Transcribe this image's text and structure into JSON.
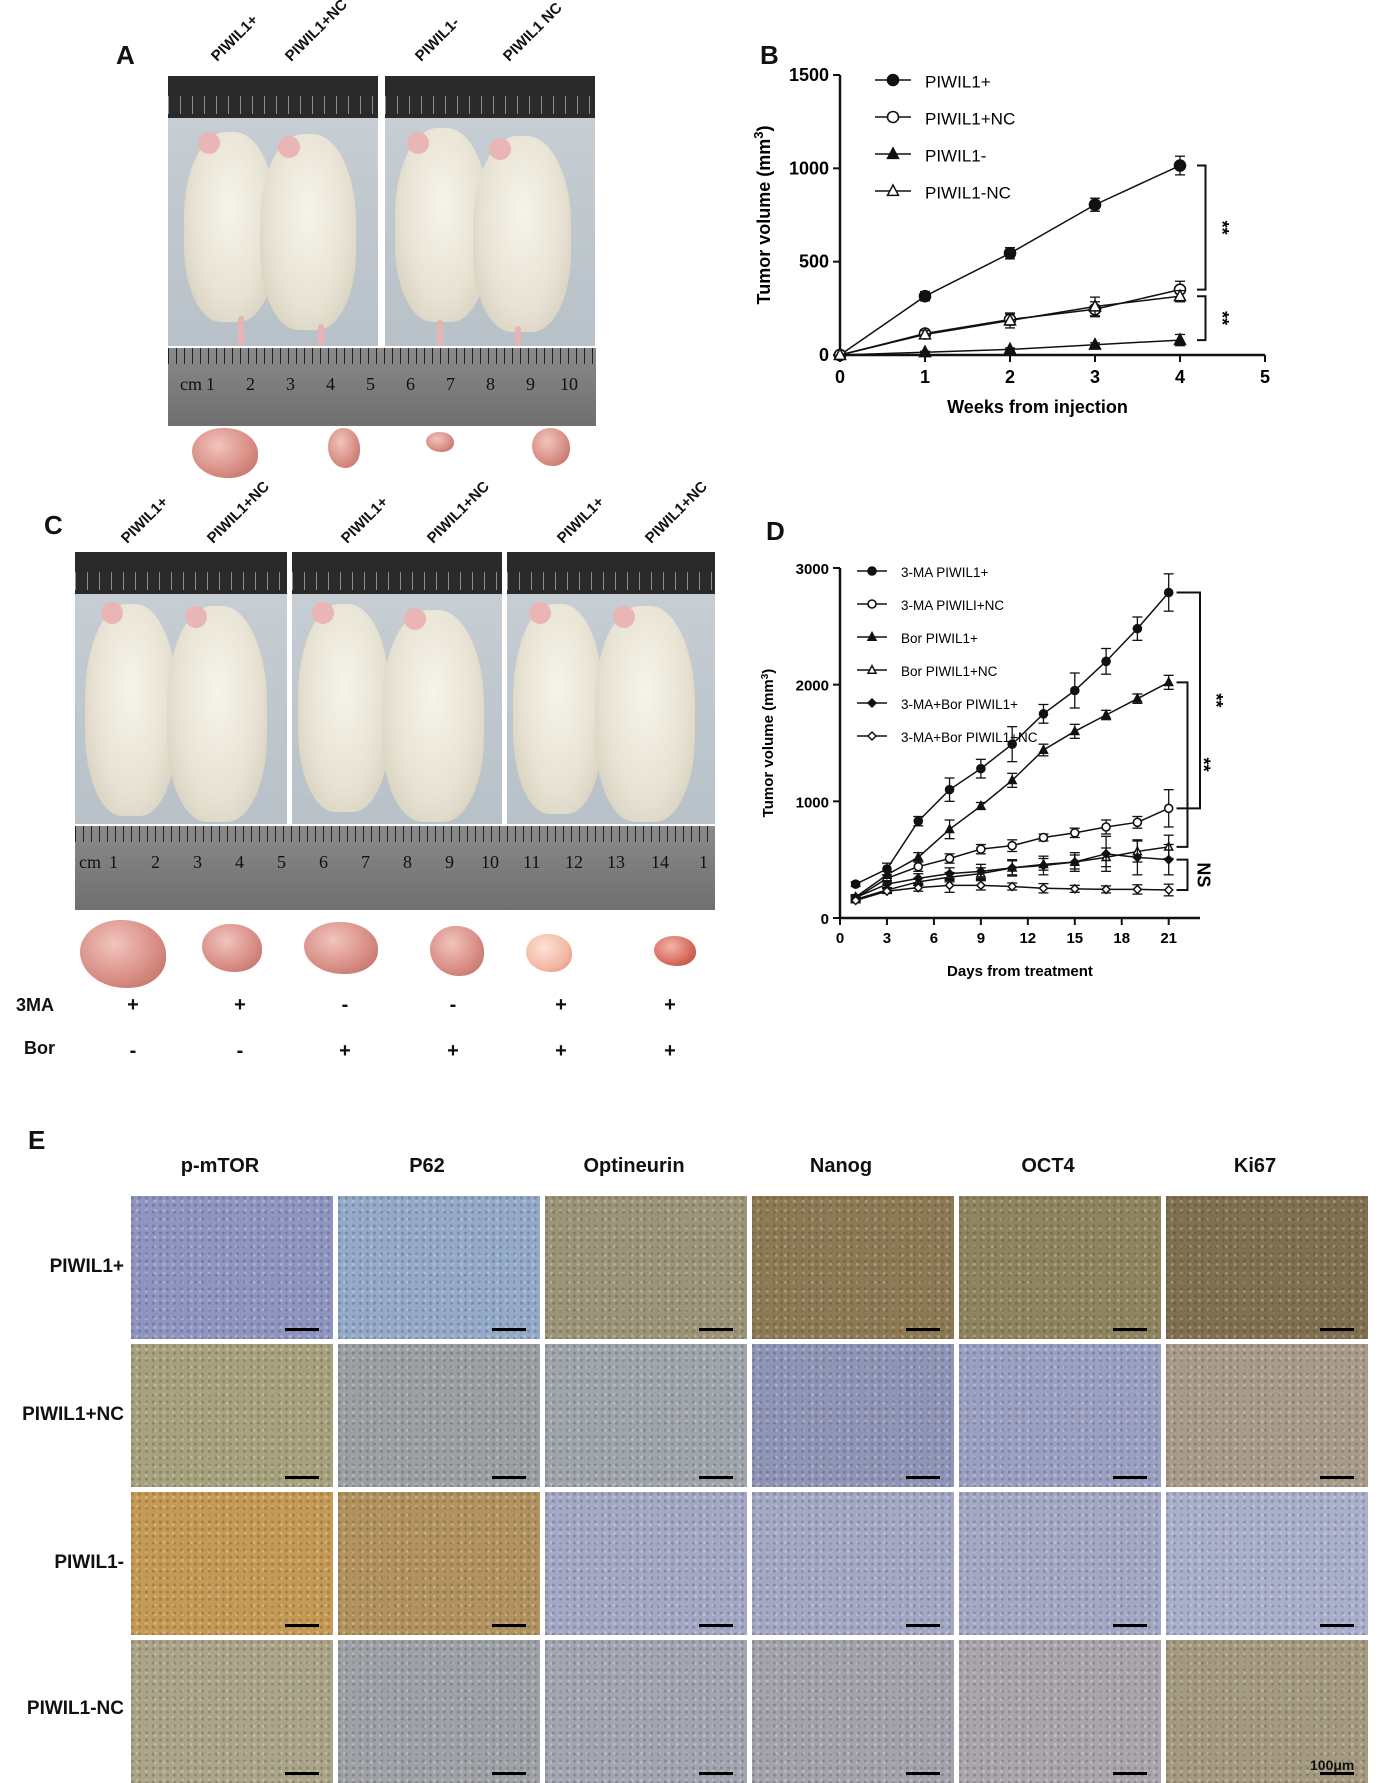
{
  "panels": {
    "a": "A",
    "b": "B",
    "c": "C",
    "d": "D",
    "e": "E"
  },
  "panel_a": {
    "labels": [
      "PIWIL1+",
      "PIWIL1+NC",
      "PIWIL1-",
      "PIWIL1 NC"
    ],
    "ruler_numbers": [
      "1",
      "2",
      "3",
      "4",
      "5",
      "6",
      "7",
      "8",
      "9",
      "10"
    ],
    "ruler_unit": "cm"
  },
  "panel_c": {
    "labels": [
      "PIWIL1+",
      "PIWIL1+NC",
      "PIWIL1+",
      "PIWIL1+NC",
      "PIWIL1+",
      "PIWIL1+NC"
    ],
    "ruler_numbers": [
      "1",
      "2",
      "3",
      "4",
      "5",
      "6",
      "7",
      "8",
      "9",
      "10",
      "11",
      "12",
      "13",
      "14",
      "1"
    ],
    "ruler_unit": "cm",
    "rows": [
      {
        "label": "3MA",
        "signs": [
          "+",
          "+",
          "-",
          "-",
          "+",
          "+"
        ]
      },
      {
        "label": "Bor",
        "signs": [
          "-",
          "-",
          "+",
          "+",
          "+",
          "+"
        ]
      }
    ]
  },
  "panel_e": {
    "columns": [
      "p-mTOR",
      "P62",
      "Optineurin",
      "Nanog",
      "OCT4",
      "Ki67"
    ],
    "rows": [
      "PIWIL1+",
      "PIWIL1+NC",
      "PIWIL1-",
      "PIWIL1-NC"
    ],
    "scale_label": "100μm",
    "tints": [
      [
        "#8f95c2",
        "#93aac9",
        "#9c9478",
        "#8d7a55",
        "#8f8460",
        "#806f50"
      ],
      [
        "#a6a27e",
        "#9aa0a3",
        "#9fa5ac",
        "#8f95b8",
        "#9aa0c4",
        "#a89b8a"
      ],
      [
        "#c49a55",
        "#b2935f",
        "#a3a8c6",
        "#a3a8c6",
        "#a3a8c6",
        "#a9b0cd"
      ],
      [
        "#a9a48a",
        "#9ea1a8",
        "#a2a6b3",
        "#a3a3ae",
        "#a8a6ac",
        "#a49a80"
      ]
    ]
  },
  "chart_data": [
    {
      "type": "line",
      "panel": "B",
      "xlabel": "Weeks from injection",
      "ylabel": "Tumor volume (mm3)",
      "xlim": [
        0,
        5
      ],
      "ylim": [
        0,
        1500
      ],
      "xticks": [
        0,
        1,
        2,
        3,
        4,
        5
      ],
      "yticks": [
        0,
        500,
        1000,
        1500
      ],
      "x": [
        0,
        1,
        2,
        3,
        4
      ],
      "legend_position": "top-left",
      "series": [
        {
          "name": "PIWIL1+",
          "marker": "filled-circle",
          "values": [
            0,
            315,
            545,
            805,
            1015
          ],
          "err": [
            0,
            25,
            30,
            35,
            50
          ]
        },
        {
          "name": "PIWIL1+NC",
          "marker": "open-circle",
          "values": [
            0,
            115,
            190,
            245,
            350
          ],
          "err": [
            0,
            20,
            30,
            40,
            45
          ]
        },
        {
          "name": "PIWIL1-",
          "marker": "filled-triangle",
          "values": [
            0,
            15,
            30,
            55,
            80
          ],
          "err": [
            0,
            5,
            8,
            10,
            30
          ]
        },
        {
          "name": "PIWIL1-NC",
          "marker": "open-triangle",
          "values": [
            0,
            110,
            185,
            260,
            315
          ],
          "err": [
            0,
            20,
            40,
            50,
            30
          ]
        }
      ],
      "annotations": [
        "**",
        "**"
      ]
    },
    {
      "type": "line",
      "panel": "D",
      "xlabel": "Days from treatment",
      "ylabel": "Tumor volume (mm3)",
      "xlim": [
        0,
        23
      ],
      "ylim": [
        0,
        3000
      ],
      "xticks": [
        0,
        3,
        6,
        9,
        12,
        15,
        18,
        21
      ],
      "yticks": [
        0,
        1000,
        2000,
        3000
      ],
      "legend_position": "top-left",
      "series": [
        {
          "name": "3-MA PIWIL1+",
          "marker": "filled-circle",
          "x": [
            1,
            3,
            5,
            7,
            9,
            11,
            13,
            15,
            17,
            19,
            21
          ],
          "values": [
            290,
            420,
            830,
            1100,
            1280,
            1490,
            1750,
            1950,
            2200,
            2480,
            2790
          ],
          "err": [
            20,
            50,
            40,
            100,
            80,
            150,
            80,
            150,
            110,
            100,
            160
          ]
        },
        {
          "name": "3-MA PIWILI+NC",
          "marker": "open-circle",
          "x": [
            1,
            3,
            5,
            7,
            9,
            11,
            13,
            15,
            17,
            19,
            21
          ],
          "values": [
            170,
            340,
            440,
            510,
            590,
            620,
            690,
            730,
            780,
            820,
            940
          ],
          "err": [
            20,
            30,
            40,
            40,
            40,
            50,
            30,
            40,
            60,
            50,
            160
          ]
        },
        {
          "name": "Bor PIWIL1+",
          "marker": "filled-triangle",
          "x": [
            1,
            3,
            5,
            7,
            9,
            11,
            13,
            15,
            17,
            19,
            21
          ],
          "values": [
            180,
            370,
            520,
            760,
            960,
            1180,
            1440,
            1600,
            1740,
            1880,
            2020
          ],
          "err": [
            20,
            30,
            40,
            80,
            30,
            60,
            50,
            60,
            40,
            40,
            60
          ]
        },
        {
          "name": "Bor PIWIL1+NC",
          "marker": "open-triangle",
          "x": [
            1,
            3,
            5,
            7,
            9,
            11,
            13,
            15,
            17,
            19,
            21
          ],
          "values": [
            160,
            240,
            310,
            350,
            380,
            430,
            460,
            480,
            520,
            570,
            610
          ],
          "err": [
            20,
            20,
            30,
            40,
            50,
            60,
            50,
            60,
            80,
            90,
            100
          ]
        },
        {
          "name": "3-MA+Bor PIWIL1+",
          "marker": "filled-diamond",
          "x": [
            1,
            3,
            5,
            7,
            9,
            11,
            13,
            15,
            17,
            19,
            21
          ],
          "values": [
            175,
            290,
            340,
            380,
            400,
            430,
            450,
            480,
            550,
            520,
            500
          ],
          "err": [
            20,
            30,
            40,
            50,
            60,
            70,
            80,
            80,
            150,
            150,
            130
          ]
        },
        {
          "name": "3-MA+Bor PIWIL1+NC",
          "marker": "open-diamond",
          "x": [
            1,
            3,
            5,
            7,
            9,
            11,
            13,
            15,
            17,
            19,
            21
          ],
          "values": [
            150,
            230,
            260,
            280,
            280,
            270,
            255,
            250,
            245,
            245,
            240
          ],
          "err": [
            20,
            20,
            30,
            60,
            40,
            30,
            40,
            30,
            30,
            40,
            50
          ]
        }
      ],
      "annotations": [
        "**",
        "**",
        "NS"
      ]
    }
  ]
}
